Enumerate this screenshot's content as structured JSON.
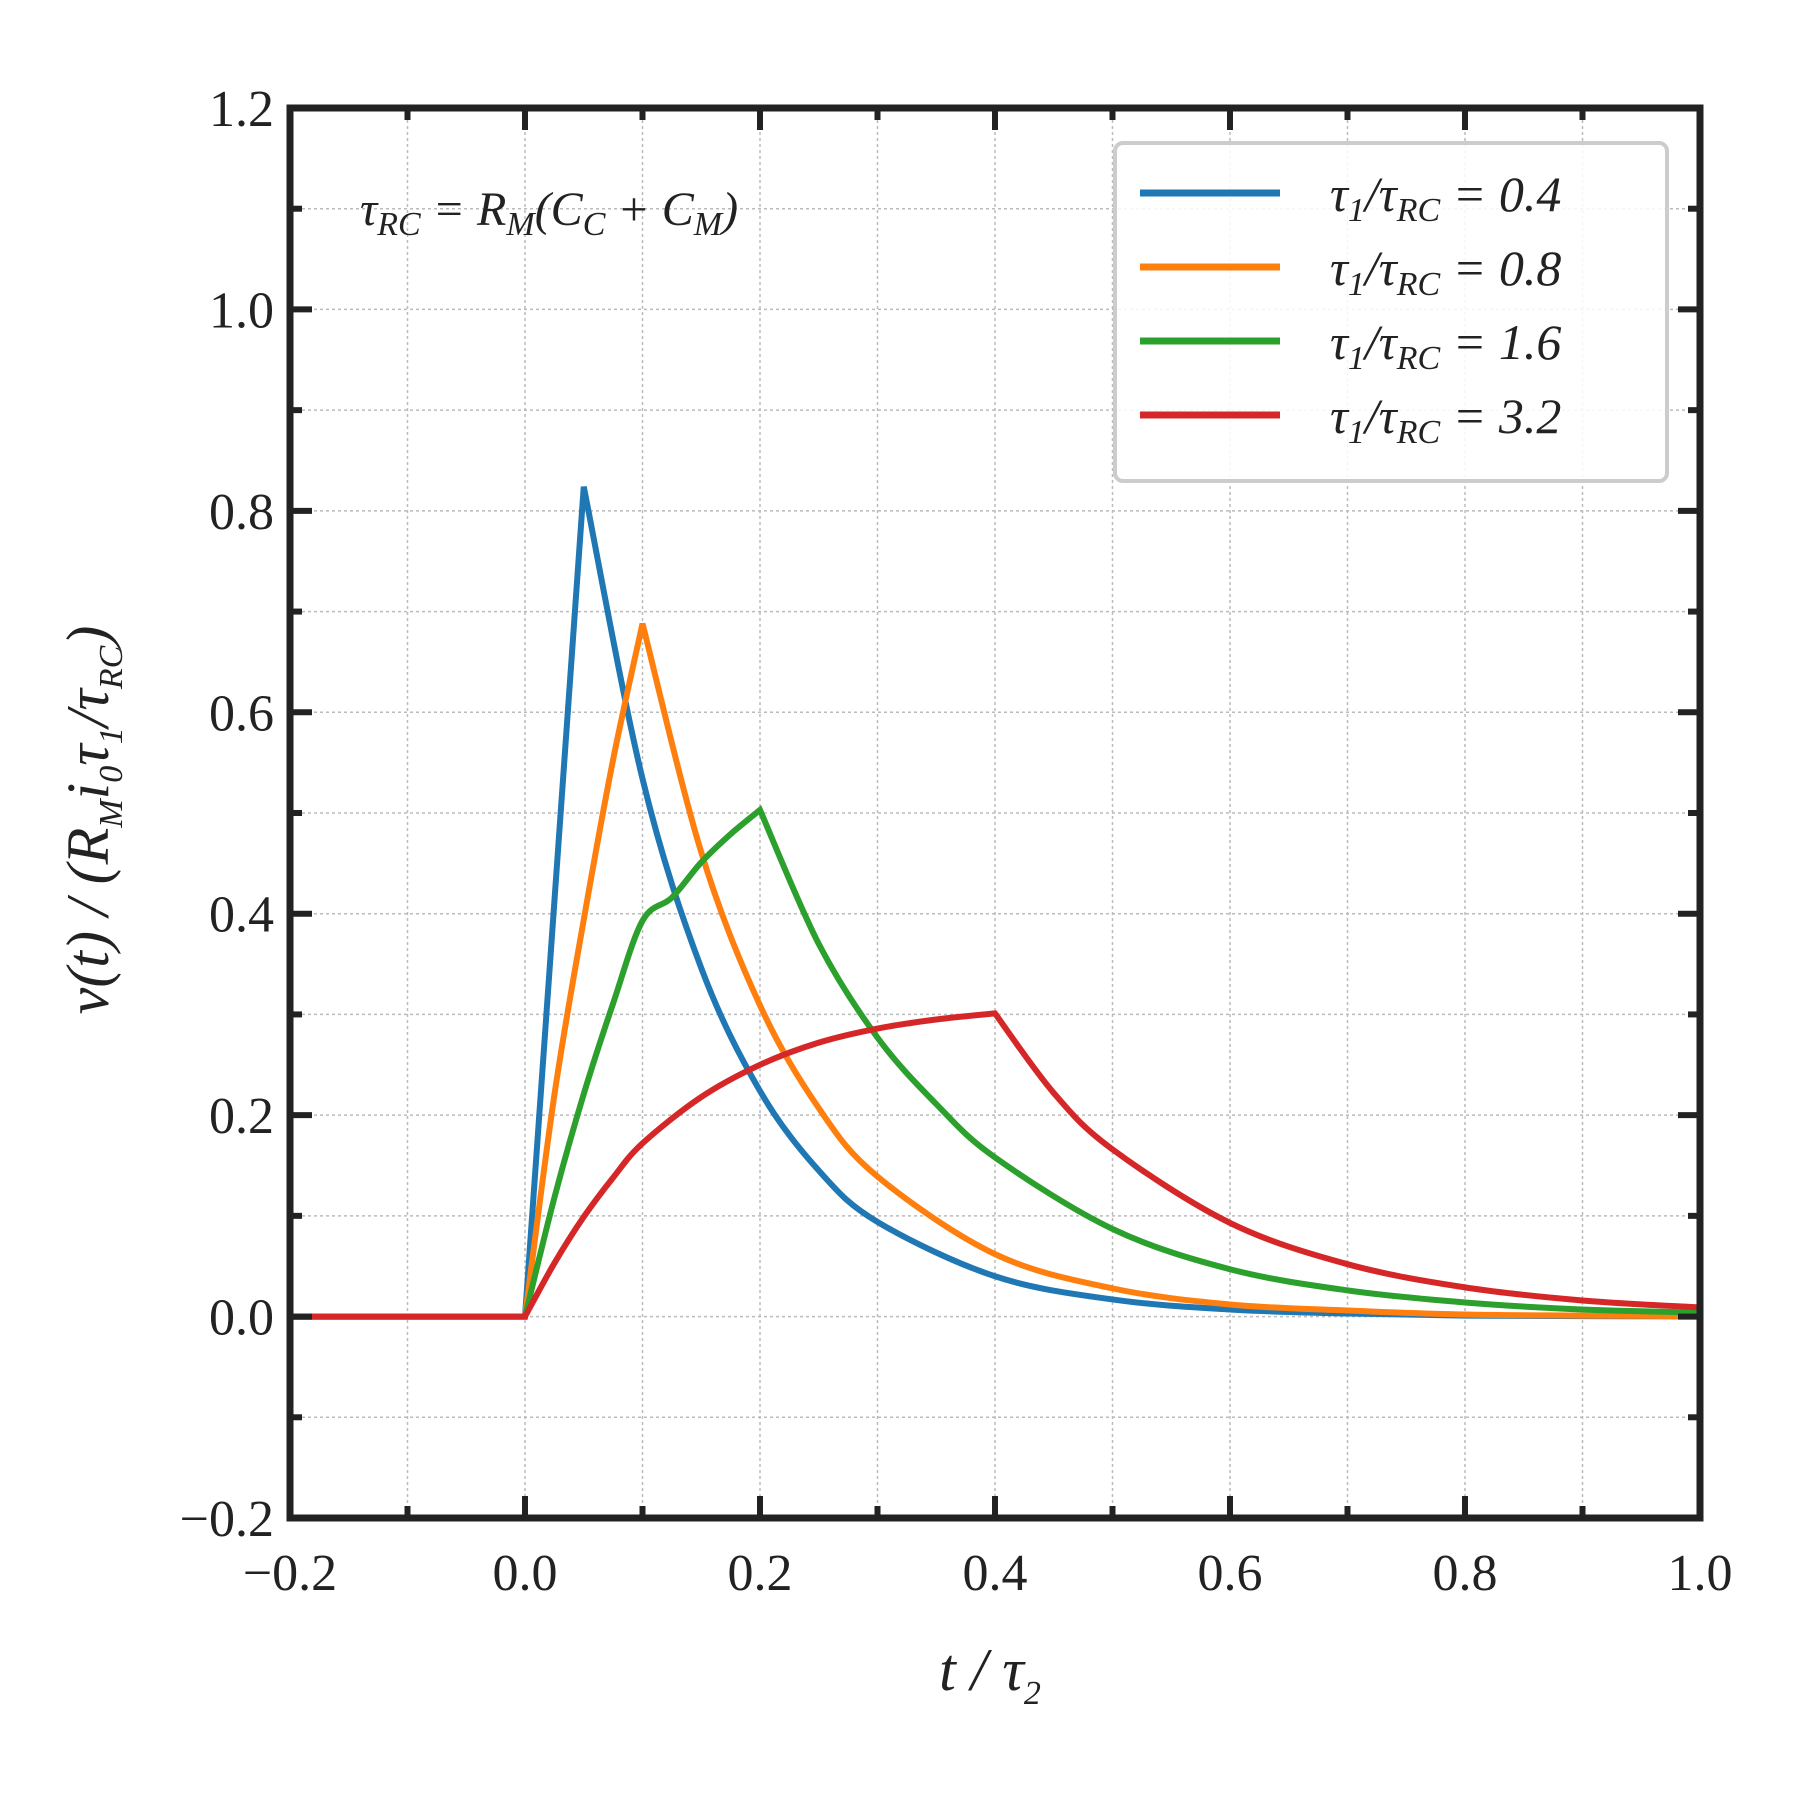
{
  "chart_data": {
    "type": "line",
    "xlabel": {
      "main": "t",
      "sep": " / ",
      "tau": "τ",
      "sub": "2"
    },
    "ylabel": {
      "v": "v(t) / (R",
      "M": "M",
      "i": "i",
      "zero": "0",
      "tau1": "τ",
      "one": "1",
      "slash": "/τ",
      "RC": "RC",
      "close": ")"
    },
    "xlim": [
      -0.2,
      1.0
    ],
    "ylim": [
      -0.2,
      1.2
    ],
    "xticks": [
      -0.2,
      0.0,
      0.2,
      0.4,
      0.6,
      0.8,
      1.0
    ],
    "xtick_labels": [
      "−0.2",
      "0.0",
      "0.2",
      "0.4",
      "0.6",
      "0.8",
      "1.0"
    ],
    "yticks": [
      -0.2,
      0.0,
      0.2,
      0.4,
      0.6,
      0.8,
      1.0,
      1.2
    ],
    "ytick_labels": [
      "−0.2",
      "0.0",
      "0.2",
      "0.4",
      "0.6",
      "0.8",
      "1.0",
      "1.2"
    ],
    "grid": true,
    "legend_position": "top-right",
    "annotation": {
      "tau": "τ",
      "RC": "RC",
      "eq": " = R",
      "M": "M",
      "open": "(C",
      "C": "C",
      "plus": " + C",
      "M2": "M",
      "close": ")"
    },
    "series": [
      {
        "name": "τ1/τRC = 0.4",
        "legend": {
          "tau": "τ",
          "one": "1",
          "slash": "/τ",
          "RC": "RC",
          "eq": " = 0.4"
        },
        "color": "#1f77b4",
        "x": [
          -0.2,
          0.0,
          0.05,
          0.1,
          0.15,
          0.2,
          0.25,
          0.3,
          0.4,
          0.5,
          0.6,
          0.7,
          0.8,
          0.9,
          1.0
        ],
        "y": [
          0.0,
          0.0,
          0.824,
          0.534,
          0.346,
          0.224,
          0.145,
          0.094,
          0.04,
          0.017,
          0.007,
          0.003,
          0.001,
          0.0005,
          0.0002
        ]
      },
      {
        "name": "τ1/τRC = 0.8",
        "legend": {
          "tau": "τ",
          "one": "1",
          "slash": "/τ",
          "RC": "RC",
          "eq": " = 0.8"
        },
        "color": "#ff7f0e",
        "x": [
          -0.2,
          0.0,
          0.025,
          0.05,
          0.075,
          0.1,
          0.15,
          0.2,
          0.25,
          0.3,
          0.4,
          0.5,
          0.6,
          0.7,
          0.8,
          0.9,
          1.0
        ],
        "y": [
          0.0,
          0.0,
          0.22,
          0.394,
          0.553,
          0.688,
          0.461,
          0.309,
          0.207,
          0.139,
          0.062,
          0.028,
          0.012,
          0.006,
          0.002,
          0.001,
          0.0005
        ]
      },
      {
        "name": "τ1/τRC = 1.6",
        "legend": {
          "tau": "τ",
          "one": "1",
          "slash": "/τ",
          "RC": "RC",
          "eq": " = 1.6"
        },
        "color": "#2ca02c",
        "x": [
          -0.2,
          0.0,
          0.025,
          0.05,
          0.075,
          0.1,
          0.125,
          0.15,
          0.175,
          0.2,
          0.25,
          0.3,
          0.35,
          0.4,
          0.5,
          0.6,
          0.7,
          0.8,
          0.9,
          1.0
        ],
        "y": [
          0.0,
          0.0,
          0.118,
          0.221,
          0.311,
          0.393,
          0.416,
          0.451,
          0.479,
          0.503,
          0.37,
          0.277,
          0.211,
          0.158,
          0.087,
          0.047,
          0.026,
          0.014,
          0.007,
          0.004
        ]
      },
      {
        "name": "τ1/τRC = 3.2",
        "legend": {
          "tau": "τ",
          "one": "1",
          "slash": "/τ",
          "RC": "RC",
          "eq": " = 3.2"
        },
        "color": "#d62728",
        "x": [
          -0.2,
          0.0,
          0.025,
          0.05,
          0.075,
          0.1,
          0.15,
          0.2,
          0.25,
          0.3,
          0.35,
          0.4,
          0.45,
          0.5,
          0.6,
          0.7,
          0.8,
          0.9,
          1.0
        ],
        "y": [
          0.0,
          0.0,
          0.053,
          0.099,
          0.138,
          0.172,
          0.218,
          0.25,
          0.272,
          0.286,
          0.295,
          0.301,
          0.222,
          0.166,
          0.093,
          0.052,
          0.029,
          0.016,
          0.009
        ]
      }
    ]
  }
}
